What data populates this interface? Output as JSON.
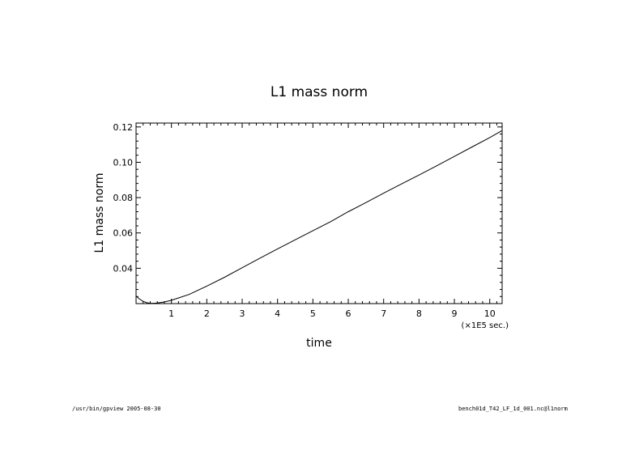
{
  "chart_data": {
    "type": "line",
    "title": "L1  mass  norm",
    "xlabel": "time",
    "ylabel": "L1  mass  norm",
    "x_unit_label": "(×1E5 sec.)",
    "xlim": [
      0.0,
      10.35
    ],
    "ylim": [
      0.02,
      0.1222
    ],
    "x_ticks": [
      1,
      2,
      3,
      4,
      5,
      6,
      7,
      8,
      9,
      10
    ],
    "x_tick_labels": [
      "1",
      "2",
      "3",
      "4",
      "5",
      "6",
      "7",
      "8",
      "9",
      "10"
    ],
    "y_ticks": [
      0.04,
      0.06,
      0.08,
      0.1,
      0.12
    ],
    "y_tick_labels": [
      "0.04",
      "0.06",
      "0.08",
      "0.10",
      "0.12"
    ],
    "grid": false,
    "series": [
      {
        "color": "#000000",
        "x": [
          0.0,
          0.1,
          0.2,
          0.3,
          0.4,
          0.5,
          0.6,
          0.8,
          1.0,
          1.2,
          1.5,
          2.0,
          2.5,
          3.0,
          3.5,
          4.0,
          4.5,
          5.0,
          5.5,
          6.0,
          6.5,
          7.0,
          7.5,
          8.0,
          8.5,
          9.0,
          9.5,
          10.0,
          10.35
        ],
        "y": [
          0.0242,
          0.0225,
          0.0213,
          0.0205,
          0.0202,
          0.0202,
          0.0203,
          0.0209,
          0.0219,
          0.0232,
          0.0252,
          0.0299,
          0.0349,
          0.0403,
          0.0457,
          0.051,
          0.0561,
          0.0613,
          0.0664,
          0.072,
          0.0772,
          0.0825,
          0.0877,
          0.0928,
          0.098,
          0.1033,
          0.1087,
          0.114,
          0.118
        ]
      }
    ]
  },
  "footer": {
    "left": "/usr/bin/gpview  2005-08-30",
    "right": "bench01d_T42_LF_1d_001.nc@l1norm"
  }
}
